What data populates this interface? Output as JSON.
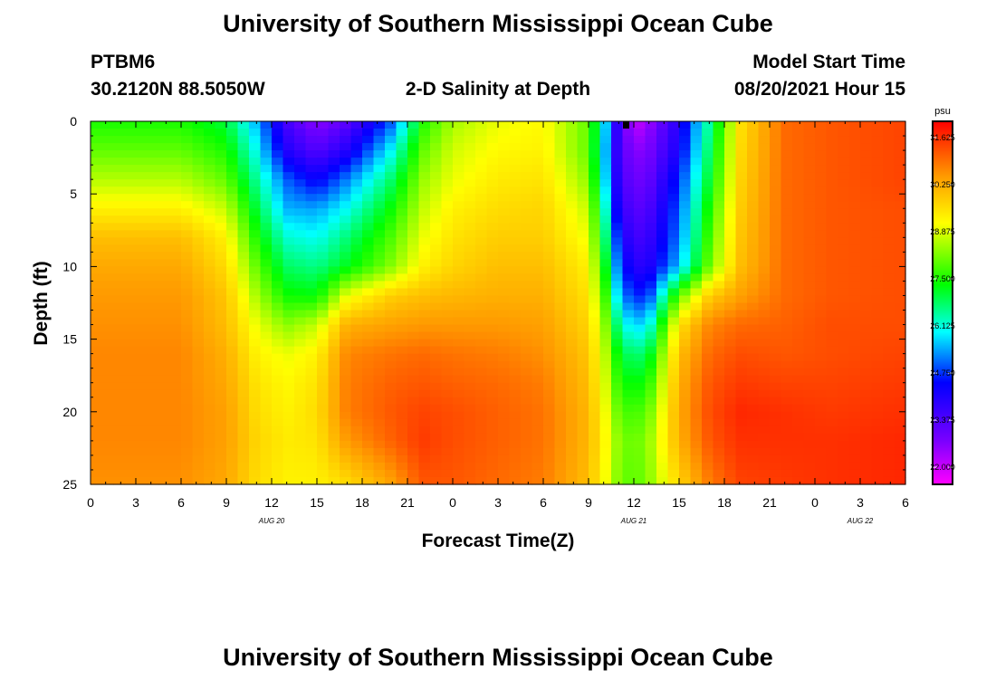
{
  "header": {
    "title": "University of Southern Mississippi Ocean Cube",
    "station": "PTBM6",
    "location": "30.2120N  88.5050W",
    "subtitle": "2-D Salinity at Depth",
    "model_label": "Model Start Time",
    "model_time": "08/20/2021 Hour 15"
  },
  "footer": {
    "title": "University of Southern Mississippi Ocean Cube"
  },
  "chart_data": {
    "type": "heatmap",
    "title": "2-D Salinity at Depth",
    "xlabel": "Forecast Time(Z)",
    "ylabel": "Depth (ft)",
    "x_tick_labels": [
      "0",
      "3",
      "6",
      "9",
      "12",
      "15",
      "18",
      "21",
      "0",
      "3",
      "6",
      "9",
      "12",
      "15",
      "18",
      "21",
      "0",
      "3",
      "6"
    ],
    "x_range_hours": [
      0,
      54
    ],
    "date_labels": [
      {
        "text": "AUG 20",
        "hour": 12
      },
      {
        "text": "AUG 21",
        "hour": 36
      },
      {
        "text": "AUG 22",
        "hour": 51
      }
    ],
    "y_tick_labels": [
      "0",
      "5",
      "10",
      "15",
      "20",
      "25"
    ],
    "y_range_ft": [
      0,
      25
    ],
    "colorbar": {
      "unit": "psu",
      "min": 21.5,
      "max": 32.1,
      "tick_labels": [
        "31.625",
        "30.250",
        "28.875",
        "27.500",
        "26.125",
        "24.750",
        "23.375",
        "22.000"
      ],
      "tick_values": [
        31.625,
        30.25,
        28.875,
        27.5,
        26.125,
        24.75,
        23.375,
        22.0
      ]
    },
    "time_hours": [
      0,
      6,
      9,
      11,
      13,
      15,
      17,
      20,
      22,
      24,
      27,
      30,
      33,
      34,
      35,
      36,
      37,
      39,
      41,
      43,
      46,
      49,
      54
    ],
    "depth_ft": [
      0,
      2,
      4,
      6,
      8,
      10,
      12,
      14,
      16,
      18,
      20,
      22,
      25
    ],
    "salinity_psu": [
      [
        27.5,
        27.5,
        27.0,
        25.5,
        23.5,
        22.6,
        23.2,
        25.0,
        27.5,
        28.5,
        29.0,
        29.2,
        28.0,
        26.0,
        23.5,
        22.0,
        22.5,
        24.0,
        26.5,
        29.5,
        31.0,
        31.2,
        31.4
      ],
      [
        28.0,
        28.0,
        27.5,
        26.0,
        24.0,
        23.3,
        24.0,
        26.0,
        28.0,
        28.8,
        29.2,
        29.3,
        28.0,
        25.8,
        23.5,
        22.6,
        22.8,
        24.2,
        26.8,
        29.6,
        31.0,
        31.2,
        31.4
      ],
      [
        28.6,
        28.6,
        28.0,
        26.5,
        25.0,
        24.3,
        25.2,
        26.8,
        28.4,
        29.0,
        29.4,
        29.5,
        28.3,
        26.0,
        23.7,
        22.9,
        23.1,
        24.7,
        27.1,
        29.7,
        31.0,
        31.2,
        31.4
      ],
      [
        29.3,
        29.3,
        28.7,
        27.0,
        25.5,
        25.4,
        26.0,
        27.4,
        28.7,
        29.3,
        29.6,
        29.7,
        28.7,
        26.5,
        24.0,
        23.2,
        23.4,
        25.0,
        27.5,
        29.8,
        31.0,
        31.2,
        31.3
      ],
      [
        30.0,
        30.0,
        29.3,
        27.5,
        26.2,
        26.0,
        26.7,
        27.9,
        29.0,
        29.5,
        29.8,
        29.8,
        29.0,
        27.0,
        24.5,
        23.5,
        23.7,
        25.2,
        27.8,
        29.9,
        31.0,
        31.2,
        31.3
      ],
      [
        30.3,
        30.3,
        29.6,
        28.0,
        26.8,
        26.6,
        27.2,
        28.3,
        29.3,
        29.7,
        30.0,
        30.0,
        29.3,
        27.5,
        25.0,
        23.9,
        24.0,
        25.6,
        28.1,
        30.0,
        31.0,
        31.2,
        31.3
      ],
      [
        30.5,
        30.5,
        29.9,
        28.5,
        27.4,
        27.3,
        29.0,
        29.8,
        30.0,
        30.1,
        30.2,
        30.2,
        29.5,
        28.0,
        25.6,
        24.6,
        24.8,
        28.0,
        29.8,
        30.4,
        31.0,
        31.2,
        31.3
      ],
      [
        30.6,
        30.6,
        30.0,
        29.0,
        28.3,
        28.7,
        30.2,
        30.4,
        30.5,
        30.5,
        30.5,
        30.4,
        29.7,
        28.5,
        26.5,
        25.6,
        26.0,
        29.5,
        30.7,
        31.0,
        31.1,
        31.3,
        31.3
      ],
      [
        30.7,
        30.7,
        30.2,
        29.3,
        29.0,
        29.3,
        30.7,
        30.9,
        31.0,
        30.9,
        30.8,
        30.6,
        29.9,
        28.8,
        27.2,
        26.6,
        27.0,
        30.0,
        31.0,
        31.3,
        31.2,
        31.3,
        31.4
      ],
      [
        30.7,
        30.7,
        30.3,
        29.5,
        29.2,
        29.5,
        30.8,
        31.1,
        31.2,
        31.1,
        31.0,
        30.8,
        30.0,
        29.0,
        27.6,
        27.2,
        27.6,
        30.2,
        31.2,
        31.5,
        31.4,
        31.4,
        31.5
      ],
      [
        30.7,
        30.7,
        30.4,
        29.6,
        29.3,
        29.6,
        30.8,
        31.2,
        31.4,
        31.3,
        31.1,
        30.9,
        30.1,
        29.2,
        28.0,
        27.7,
        28.1,
        30.3,
        31.3,
        31.7,
        31.6,
        31.5,
        31.6
      ],
      [
        30.7,
        30.7,
        30.4,
        29.7,
        29.4,
        29.5,
        30.5,
        31.1,
        31.5,
        31.3,
        31.1,
        30.9,
        30.1,
        29.3,
        28.3,
        28.0,
        28.4,
        30.2,
        31.2,
        31.6,
        31.6,
        31.6,
        31.7
      ],
      [
        30.6,
        30.6,
        30.3,
        29.6,
        29.3,
        29.3,
        29.6,
        30.4,
        31.2,
        31.2,
        31.0,
        30.8,
        30.0,
        29.2,
        28.2,
        27.9,
        28.3,
        29.7,
        30.8,
        31.4,
        31.5,
        31.6,
        31.7
      ]
    ]
  }
}
